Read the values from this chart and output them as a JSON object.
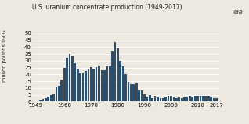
{
  "title": "U.S. uranium concentrate production (1949-2017)",
  "ylabel": "million pounds U₂O₃",
  "ylim": [
    0,
    50
  ],
  "yticks": [
    0,
    5,
    10,
    15,
    20,
    25,
    30,
    35,
    40,
    45,
    50
  ],
  "xticks": [
    1949,
    1960,
    1970,
    1980,
    1990,
    2000,
    2010,
    2017
  ],
  "bar_color": "#2e4f6b",
  "bg_color": "#ede8e0",
  "grid_color": "#ffffff",
  "years": [
    1949,
    1950,
    1951,
    1952,
    1953,
    1954,
    1955,
    1956,
    1957,
    1958,
    1959,
    1960,
    1961,
    1962,
    1963,
    1964,
    1965,
    1966,
    1967,
    1968,
    1969,
    1970,
    1971,
    1972,
    1973,
    1974,
    1975,
    1976,
    1977,
    1978,
    1979,
    1980,
    1981,
    1982,
    1983,
    1984,
    1985,
    1986,
    1987,
    1988,
    1989,
    1990,
    1991,
    1992,
    1993,
    1994,
    1995,
    1996,
    1997,
    1998,
    1999,
    2000,
    2001,
    2002,
    2003,
    2004,
    2005,
    2006,
    2007,
    2008,
    2009,
    2010,
    2011,
    2012,
    2013,
    2014,
    2015,
    2016,
    2017
  ],
  "values": [
    0.4,
    1.0,
    1.4,
    1.8,
    2.5,
    3.5,
    5.0,
    6.0,
    10.5,
    11.5,
    16.5,
    25.0,
    32.0,
    35.0,
    33.5,
    28.5,
    24.0,
    21.5,
    21.0,
    22.5,
    23.5,
    25.5,
    24.5,
    25.5,
    26.5,
    23.0,
    23.0,
    26.5,
    26.0,
    37.0,
    43.7,
    39.0,
    30.0,
    26.0,
    20.5,
    14.5,
    13.0,
    13.0,
    13.5,
    8.0,
    8.5,
    5.5,
    3.0,
    5.0,
    2.5,
    4.5,
    3.0,
    2.5,
    2.5,
    3.5,
    4.0,
    4.5,
    3.5,
    2.5,
    3.0,
    2.5,
    3.0,
    3.5,
    4.5,
    3.5,
    4.0,
    4.0,
    4.0,
    4.5,
    4.5,
    4.5,
    3.5,
    2.5,
    2.5
  ]
}
